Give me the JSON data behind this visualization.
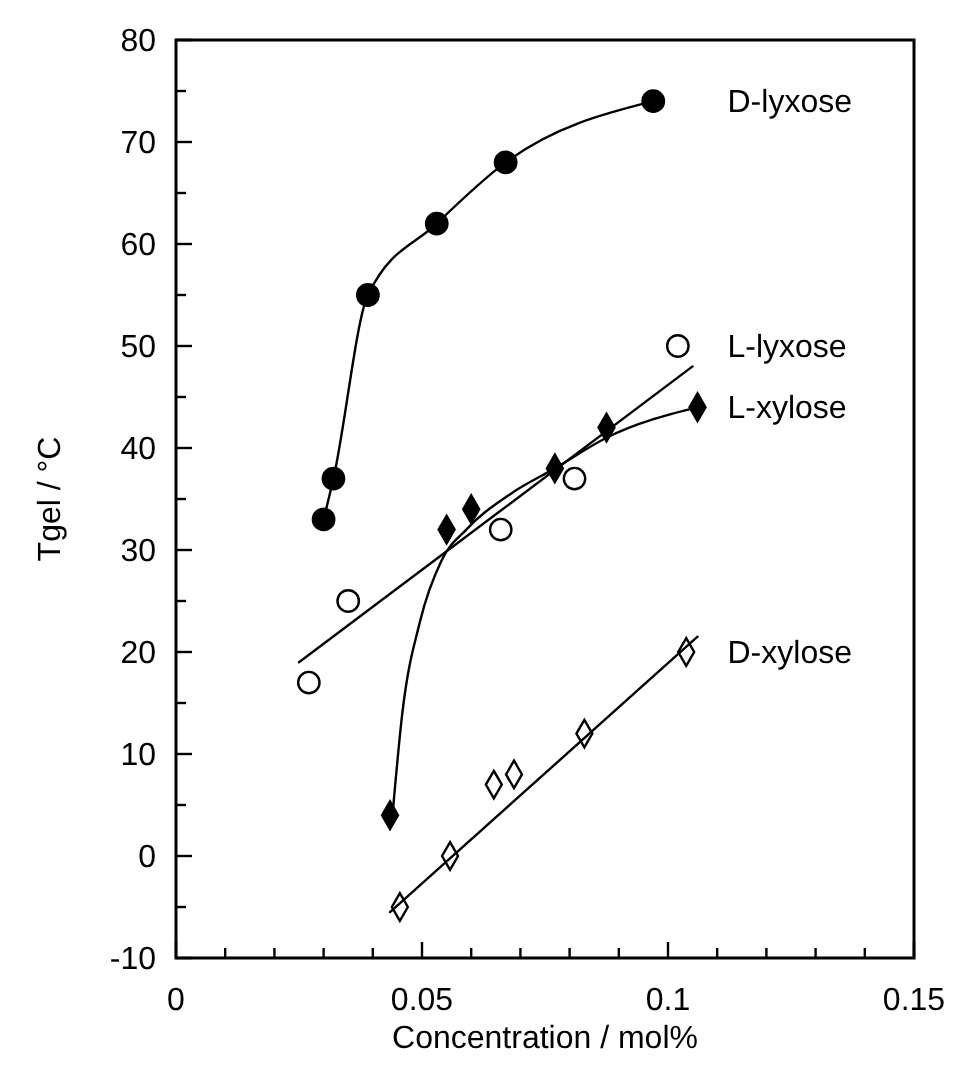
{
  "chart_data": {
    "type": "scatter",
    "xlabel": "Concentration / mol%",
    "ylabel": "Tgel / °C",
    "xlim": [
      0,
      0.15
    ],
    "ylim": [
      -10,
      80
    ],
    "xticks": [
      0,
      {
        "value": 0.01,
        "label": null
      },
      {
        "value": 0.02,
        "label": null
      },
      {
        "value": 0.03,
        "label": null
      },
      {
        "value": 0.04,
        "label": null
      },
      0.05,
      {
        "value": 0.06,
        "label": null
      },
      {
        "value": 0.07,
        "label": null
      },
      {
        "value": 0.08,
        "label": null
      },
      {
        "value": 0.09,
        "label": null
      },
      0.1,
      {
        "value": 0.11,
        "label": null
      },
      {
        "value": 0.12,
        "label": null
      },
      {
        "value": 0.13,
        "label": null
      },
      {
        "value": 0.14,
        "label": null
      },
      0.15
    ],
    "yticks": [
      -10,
      {
        "value": -5,
        "label": null
      },
      0,
      {
        "value": 5,
        "label": null
      },
      10,
      {
        "value": 15,
        "label": null
      },
      20,
      {
        "value": 25,
        "label": null
      },
      30,
      {
        "value": 35,
        "label": null
      },
      40,
      {
        "value": 45,
        "label": null
      },
      50,
      {
        "value": 55,
        "label": null
      },
      60,
      {
        "value": 65,
        "label": null
      },
      70,
      {
        "value": 75,
        "label": null
      },
      80
    ],
    "grid": false,
    "series": [
      {
        "name": "D-lyxose",
        "type": "line",
        "marker": "circle",
        "color": "#000000",
        "x": [
          0.03,
          0.032,
          0.039,
          0.053,
          0.067,
          0.097
        ],
        "values": [
          33,
          37,
          55,
          62,
          68,
          74
        ]
      },
      {
        "name": "L-lyxose",
        "marker": "circle",
        "color": "#ffffff",
        "x": [
          0.027,
          0.035,
          0.066,
          0.081,
          0.102
        ],
        "values": [
          17,
          25,
          32,
          37,
          50
        ]
      },
      {
        "type": "line",
        "marker": "none",
        "color": "#000000",
        "x": [
          0.025,
          0.105
        ],
        "values": [
          19,
          48
        ]
      },
      {
        "name": "L-xylose",
        "marker": "diamond",
        "color": "#000000",
        "x": [
          0.0435,
          0.055,
          0.06,
          0.077,
          0.0875,
          0.106
        ],
        "values": [
          4,
          32,
          34,
          38,
          42,
          44
        ]
      },
      {
        "type": "line",
        "marker": "none",
        "color": "#000000",
        "x": [
          0.044,
          0.046,
          0.0496,
          0.054,
          0.059,
          0.068,
          0.077,
          0.0875,
          0.106
        ],
        "values": [
          4,
          14,
          23,
          29,
          32,
          35.5,
          38,
          41,
          44
        ]
      },
      {
        "name": "D-xylose",
        "marker": "diamond",
        "color": "#ffffff",
        "x": [
          0.0455,
          0.0557,
          0.0646,
          0.0687,
          0.083,
          0.1037
        ],
        "values": [
          -5,
          0,
          7,
          8,
          12,
          20
        ]
      },
      {
        "type": "line",
        "marker": "none",
        "color": "#000000",
        "x": [
          0.0435,
          0.106
        ],
        "values": [
          -5.5,
          21.5
        ]
      }
    ]
  }
}
